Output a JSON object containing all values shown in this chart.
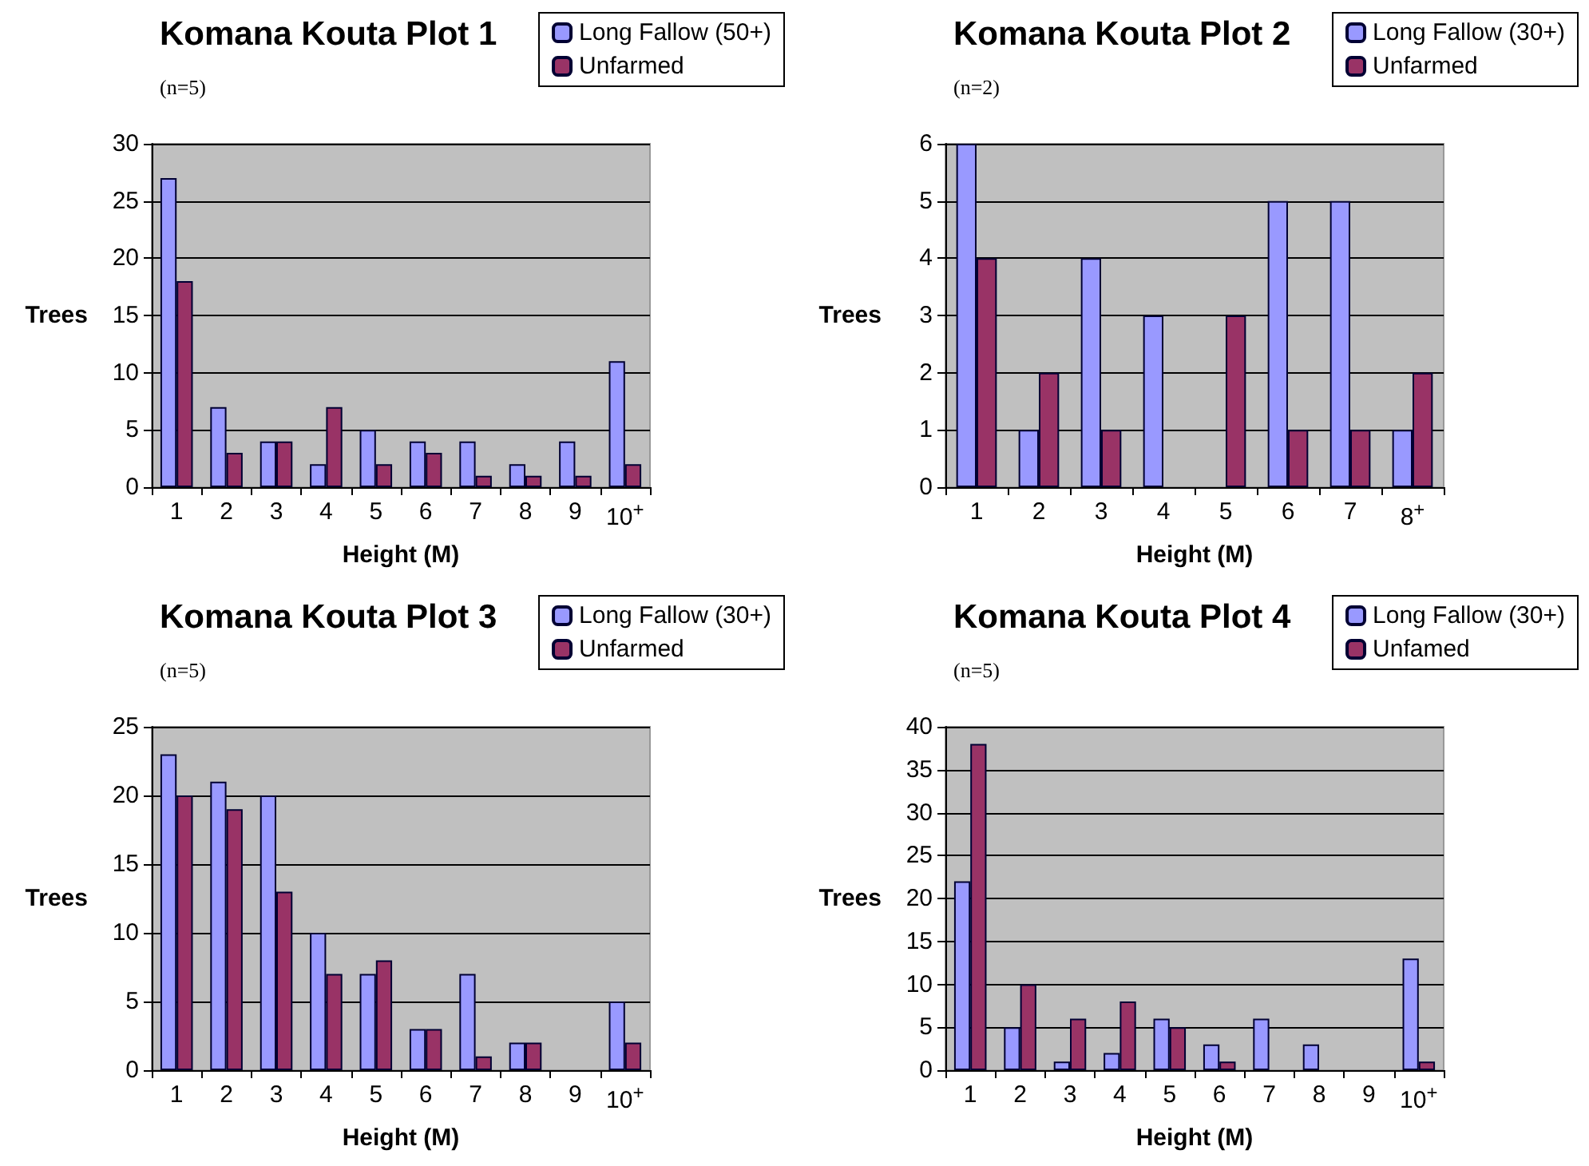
{
  "chart_data": [
    {
      "type": "bar",
      "title": "Komana Kouta Plot 1",
      "subtitle": "(n=5)",
      "xlabel": "Height (M)",
      "ylabel": "Trees",
      "categories": [
        "1",
        "2",
        "3",
        "4",
        "5",
        "6",
        "7",
        "8",
        "9",
        "10$^{+}$"
      ],
      "series": [
        {
          "name": "Long Fallow (50+)",
          "color": "#9999ff",
          "values": [
            27,
            7,
            4,
            2,
            5,
            4,
            4,
            2,
            4,
            11
          ]
        },
        {
          "name": "Unfarmed",
          "color": "#993366",
          "values": [
            18,
            3,
            4,
            7,
            2,
            3,
            1,
            1,
            1,
            2
          ]
        }
      ],
      "ylim": [
        0,
        30
      ],
      "yticks": [
        0,
        5,
        10,
        15,
        20,
        25,
        30
      ],
      "grid": "y",
      "legend": "top right"
    },
    {
      "type": "bar",
      "title": "Komana Kouta Plot 2",
      "subtitle": "(n=2)",
      "xlabel": "Height (M)",
      "ylabel": "Trees",
      "categories": [
        "1",
        "2",
        "3",
        "4",
        "5",
        "6",
        "7",
        "8$^{+}$"
      ],
      "series": [
        {
          "name": "Long Fallow (30+)",
          "color": "#9999ff",
          "values": [
            6,
            1,
            4,
            3,
            0,
            5,
            5,
            1
          ]
        },
        {
          "name": "Unfarmed",
          "color": "#993366",
          "values": [
            4,
            2,
            1,
            0,
            3,
            1,
            1,
            2
          ]
        }
      ],
      "ylim": [
        0,
        6
      ],
      "yticks": [
        0,
        1,
        2,
        3,
        4,
        5,
        6
      ],
      "grid": "y",
      "legend": "top right"
    },
    {
      "type": "bar",
      "title": "Komana Kouta Plot 3",
      "subtitle": "(n=5)",
      "xlabel": "Height (M)",
      "ylabel": "Trees",
      "categories": [
        "1",
        "2",
        "3",
        "4",
        "5",
        "6",
        "7",
        "8",
        "9",
        "10$^{+}$"
      ],
      "series": [
        {
          "name": "Long Fallow (30+)",
          "color": "#9999ff",
          "values": [
            23,
            21,
            20,
            10,
            7,
            3,
            7,
            2,
            0,
            5
          ]
        },
        {
          "name": "Unfarmed",
          "color": "#993366",
          "values": [
            20,
            19,
            13,
            7,
            8,
            3,
            1,
            2,
            0,
            2
          ]
        }
      ],
      "ylim": [
        0,
        25
      ],
      "yticks": [
        0,
        5,
        10,
        15,
        20,
        25
      ],
      "grid": "y",
      "legend": "top right"
    },
    {
      "type": "bar",
      "title": "Komana Kouta Plot 4",
      "subtitle": "(n=5)",
      "xlabel": "Height (M)",
      "ylabel": "Trees",
      "categories": [
        "1",
        "2",
        "3",
        "4",
        "5",
        "6",
        "7",
        "8",
        "9",
        "10$^{+}$"
      ],
      "series": [
        {
          "name": "Long Fallow (30+)",
          "color": "#9999ff",
          "values": [
            22,
            5,
            1,
            2,
            6,
            3,
            6,
            3,
            0,
            13
          ]
        },
        {
          "name": "Unfamed",
          "color": "#993366",
          "values": [
            38,
            10,
            6,
            8,
            5,
            1,
            0,
            0,
            0,
            1
          ]
        }
      ],
      "ylim": [
        0,
        40
      ],
      "yticks": [
        0,
        5,
        10,
        15,
        20,
        25,
        30,
        35,
        40
      ],
      "grid": "y",
      "legend": "top right"
    }
  ]
}
